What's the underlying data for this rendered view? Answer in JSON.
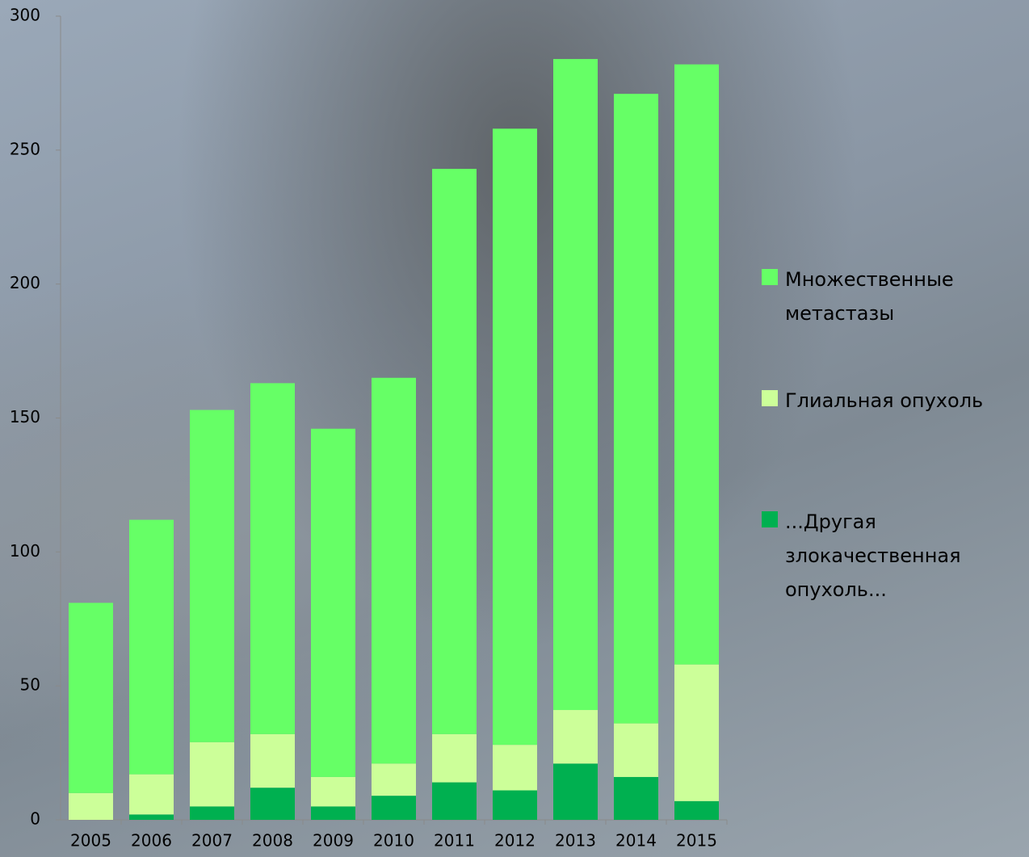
{
  "chart_data": {
    "type": "stacked_bar",
    "categories": [
      "2005",
      "2006",
      "2007",
      "2008",
      "2009",
      "2010",
      "2011",
      "2012",
      "2013",
      "2014",
      "2015"
    ],
    "series": [
      {
        "name": "...Другая злокачественная опухоль...",
        "color": "#00b050",
        "values": [
          0,
          2,
          5,
          12,
          5,
          9,
          14,
          11,
          21,
          16,
          7
        ]
      },
      {
        "name": "Глиальная опухоль",
        "color": "#ccff99",
        "values": [
          10,
          15,
          24,
          20,
          11,
          12,
          18,
          17,
          20,
          20,
          51
        ]
      },
      {
        "name": "Множественные метастазы",
        "color": "#66ff66",
        "values": [
          71,
          95,
          124,
          131,
          130,
          144,
          211,
          230,
          243,
          235,
          224
        ]
      }
    ],
    "ylim": [
      0,
      300
    ],
    "yticks": [
      0,
      50,
      100,
      150,
      200,
      250,
      300
    ],
    "legend": "right"
  }
}
